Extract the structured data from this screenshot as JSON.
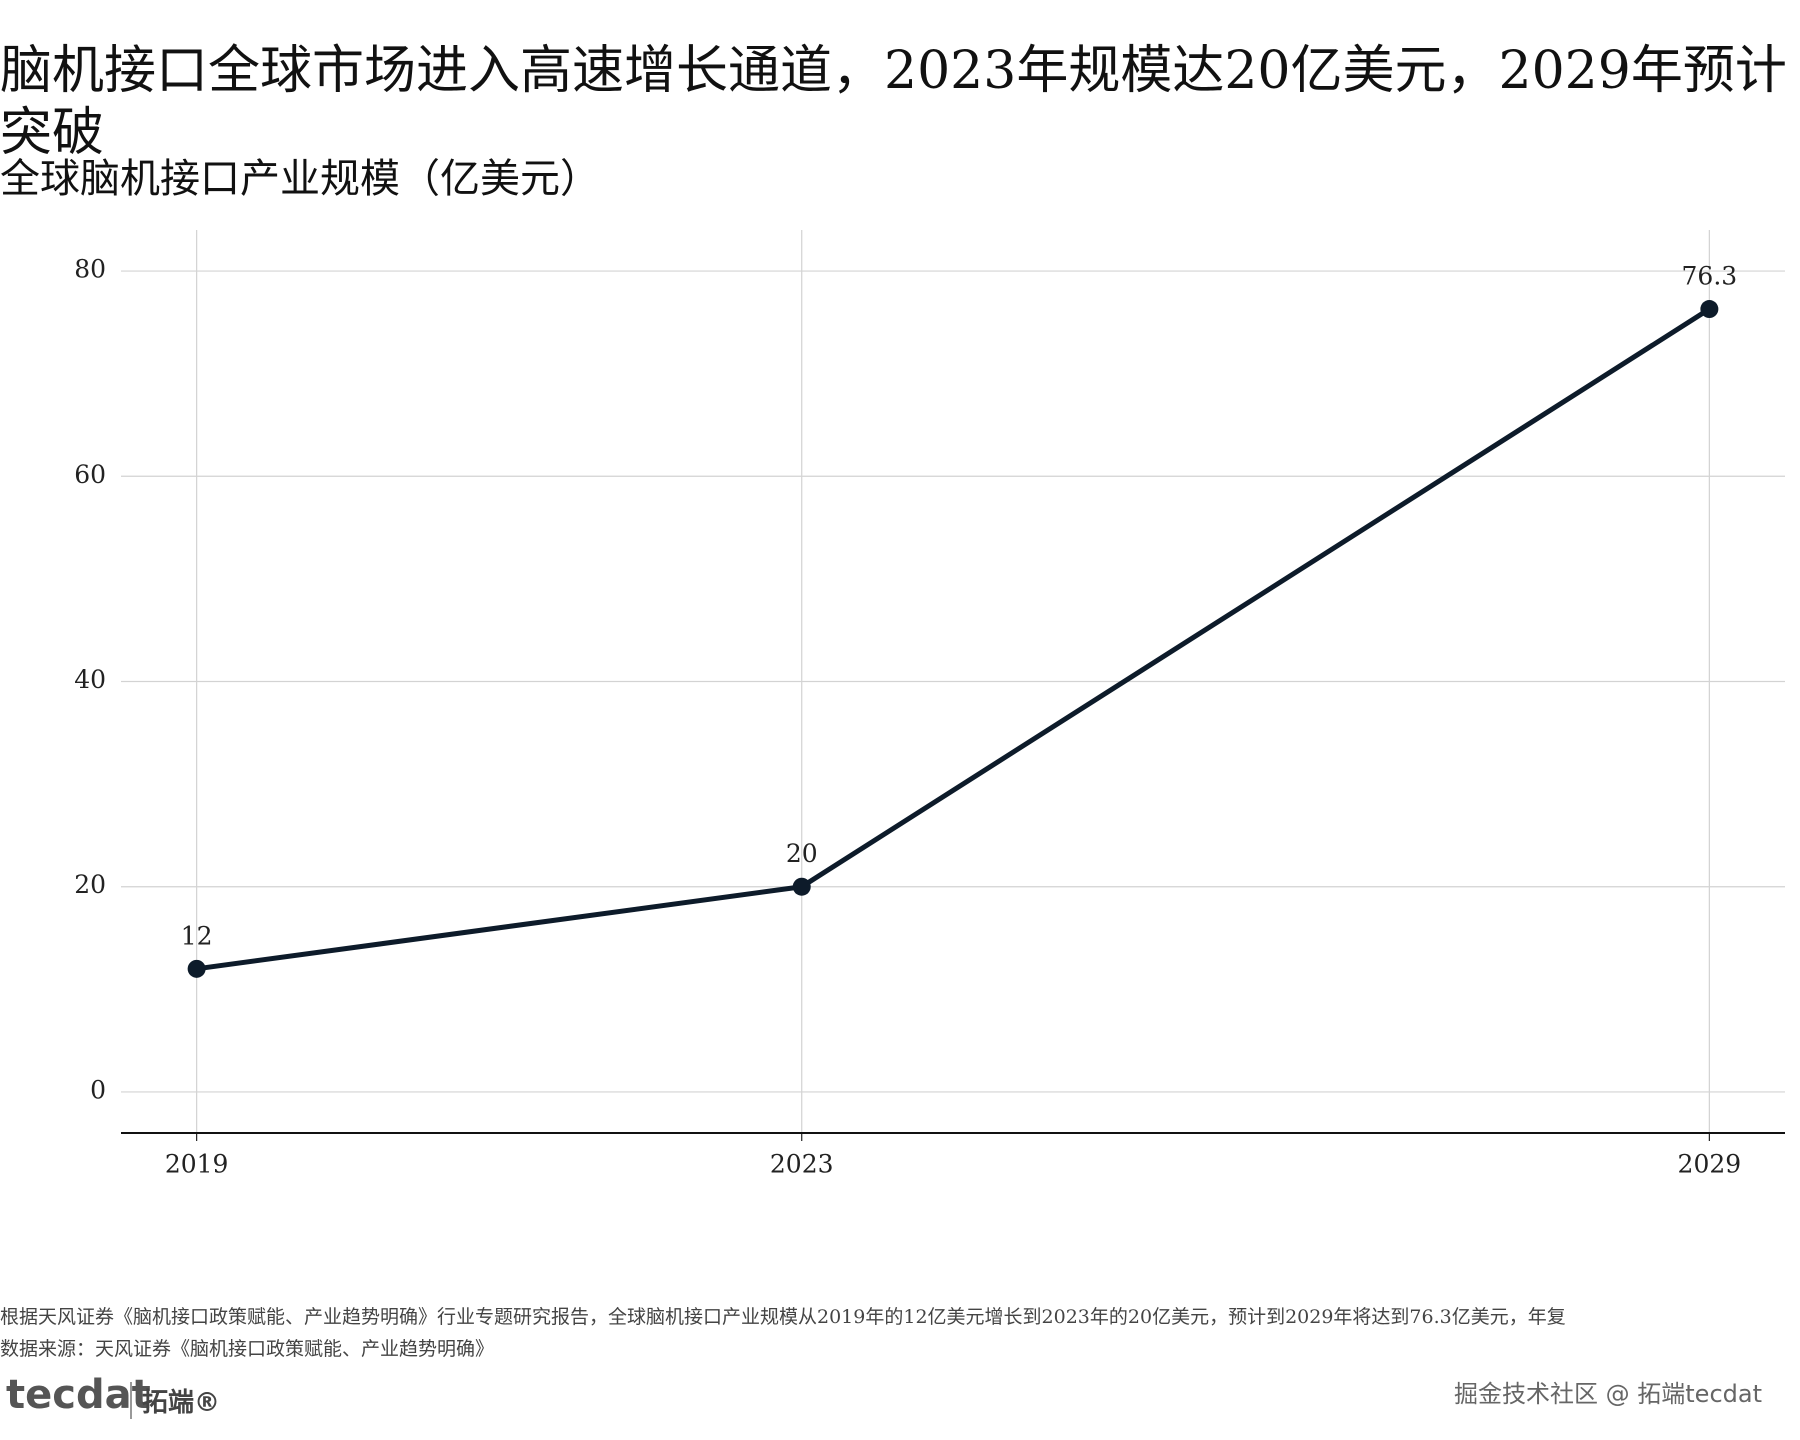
{
  "chart_data": {
    "type": "line",
    "title": "脑机接口全球市场进入高速增长通道，2023年规模达20亿美元，2029年预计突破",
    "subtitle": "全球脑机接口产业规模（亿美元）",
    "x": [
      2019,
      2023,
      2029
    ],
    "series": [
      {
        "name": "全球脑机接口产业规模",
        "color": "#0d1b2a",
        "values": [
          12,
          20,
          76.3
        ]
      }
    ],
    "xlim": [
      2018.5,
      2029.5
    ],
    "xticks": [
      2019,
      2023,
      2029
    ],
    "ylim": [
      -4,
      84
    ],
    "yticks": [
      0,
      20,
      40,
      60,
      80
    ],
    "grid": true
  },
  "footer": {
    "note": "根据天风证券《脑机接口政策赋能、产业趋势明确》行业专题研究报告，全球脑机接口产业规模从2019年的12亿美元增长到2023年的20亿美元，预计到2029年将达到76.3亿美元，年复",
    "source": "数据来源：天风证券《脑机接口政策赋能、产业趋势明确》",
    "logo": "tecdat",
    "logo_cn": "拓端®",
    "watermark": "掘金技术社区 @ 拓端tecdat"
  }
}
